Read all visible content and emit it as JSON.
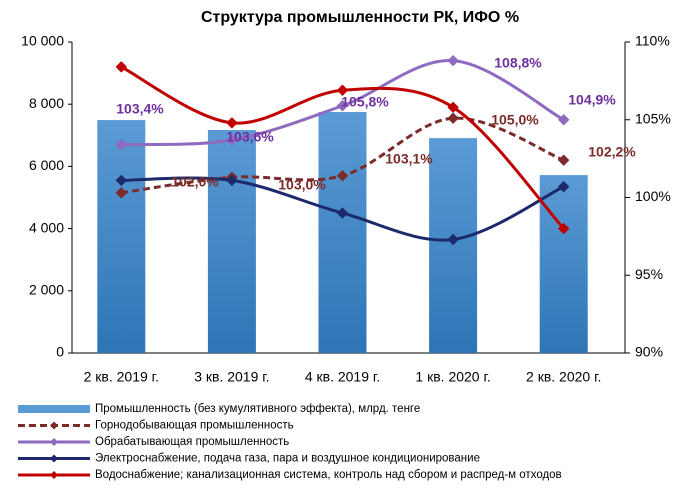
{
  "chart_data": {
    "type": "bar",
    "title": "Структура промышленности РК, ИФО %",
    "categories": [
      "2 кв. 2019 г.",
      "3 кв. 2019 г.",
      "4 кв. 2019 г.",
      "1 кв. 2020 г.",
      "2 кв. 2020 г."
    ],
    "ylim": [
      0,
      10000
    ],
    "yticks": [
      0,
      {
        "value": 2000,
        "label": "2 000"
      },
      {
        "value": 4000,
        "label": "4 000"
      },
      {
        "value": 6000,
        "label": "6 000"
      },
      {
        "value": 8000,
        "label": "8 000"
      },
      {
        "value": 10000,
        "label": "10 000"
      }
    ],
    "y2lim": [
      90,
      110
    ],
    "y2ticks": [
      {
        "value": 90,
        "label": "90%"
      },
      {
        "value": 95,
        "label": "95%"
      },
      {
        "value": 100,
        "label": "100%"
      },
      {
        "value": 105,
        "label": "105%"
      },
      {
        "value": 110,
        "label": "110%"
      }
    ],
    "series": [
      {
        "name": "Промышленность (без кумулятивного эффекта), млрд. тенге",
        "type": "bar",
        "color": "#5b9bd5",
        "values": [
          7490,
          7170,
          7750,
          6910,
          5720
        ]
      },
      {
        "name": "Горнодобывающая промышленность",
        "type": "line",
        "axis": "y2",
        "dash": true,
        "color": "#7b2c2a",
        "values": [
          100.3,
          101.3,
          101.4,
          105.1,
          102.4
        ]
      },
      {
        "name": "Обрабатывающая промышленность",
        "type": "line",
        "axis": "y2",
        "color": "#8e6bbf",
        "values": [
          103.4,
          103.7,
          105.9,
          108.8,
          105.0
        ]
      },
      {
        "name": "Электроснабжение, подача газа, пара и воздушное кондиционирование",
        "type": "line",
        "axis": "y2",
        "color": "#1c2a6b",
        "values": [
          101.1,
          101.1,
          99.0,
          97.3,
          100.7
        ]
      },
      {
        "name": "Водоснабжение; канализационная система, контроль над сбором и распред-м отходов",
        "type": "line",
        "axis": "y2",
        "color": "#c00000",
        "values": [
          108.4,
          104.8,
          106.9,
          105.8,
          98.0
        ]
      }
    ],
    "annotations": [
      "103,4%",
      "103,6%",
      "105,8%",
      "108,8%",
      "104,9%",
      "102,0%",
      "103,0%",
      "103,1%",
      "105,0%",
      "102,2%"
    ]
  }
}
